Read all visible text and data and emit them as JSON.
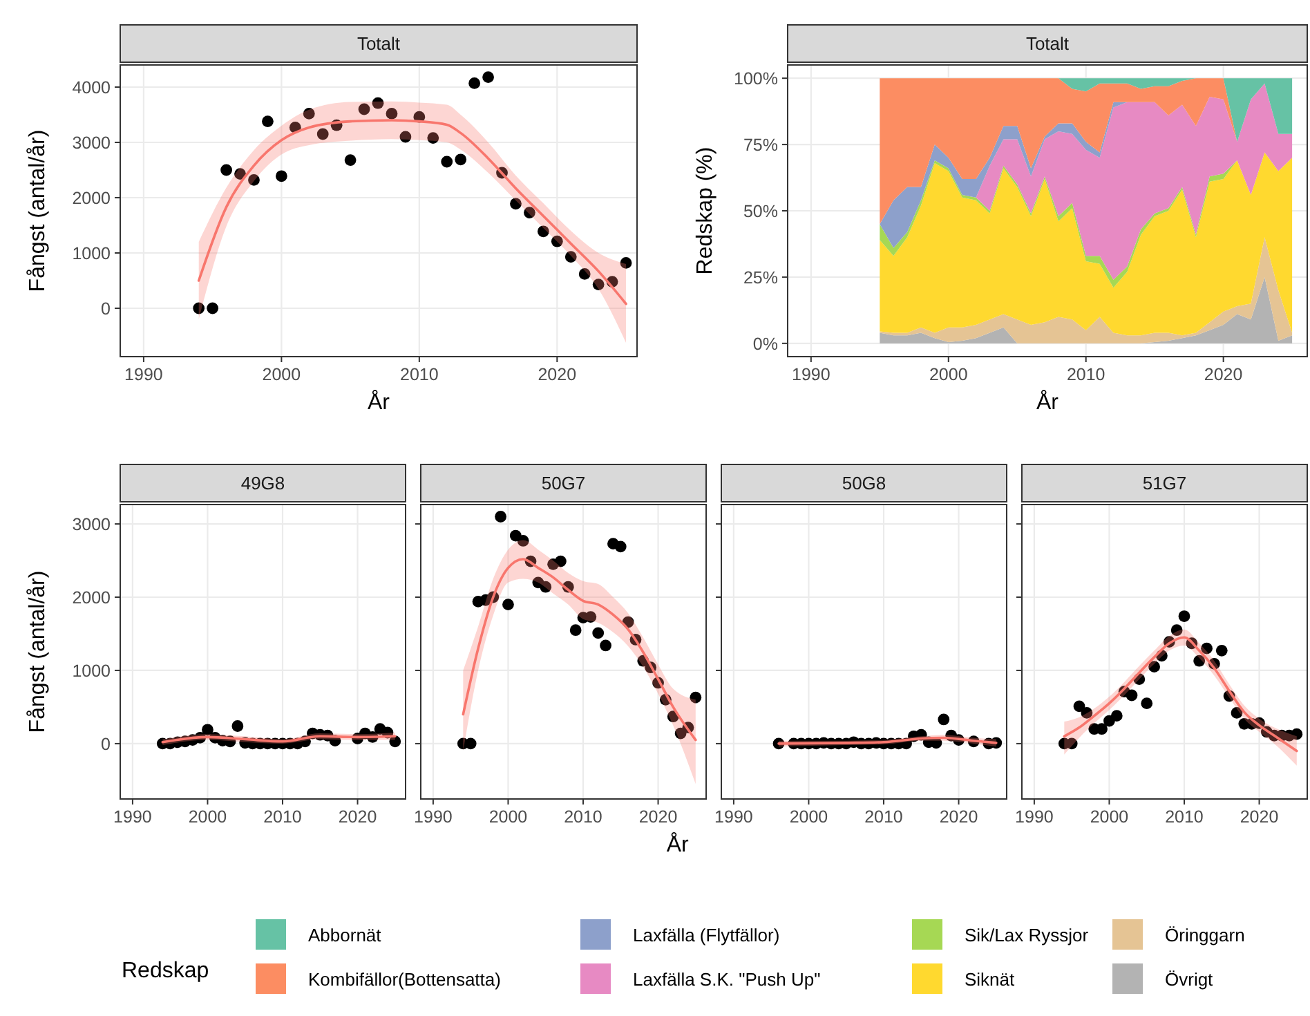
{
  "chart_data": [
    {
      "type": "scatter",
      "title": "Totalt",
      "xlabel": "År",
      "ylabel": "Fångst (antal/år)",
      "xlim": [
        1988.3,
        2025.8
      ],
      "ylim": [
        -875,
        4400
      ],
      "xticks": [
        1990,
        2000,
        2010,
        2020
      ],
      "yticks": [
        0,
        1000,
        2000,
        3000,
        4000
      ],
      "grid": true,
      "marker": "circle",
      "series": [
        {
          "type": "scatter",
          "color": "#000000",
          "x": [
            1994,
            1995,
            1996,
            1997,
            1998,
            1999,
            2000,
            2001,
            2002,
            2003,
            2004,
            2005,
            2006,
            2007,
            2008,
            2009,
            2010,
            2011,
            2012,
            2013,
            2014,
            2015,
            2016,
            2017,
            2018,
            2019,
            2020,
            2021,
            2022,
            2023,
            2024,
            2025
          ],
          "values": [
            0,
            0,
            2500,
            2430,
            2320,
            3380,
            2390,
            3270,
            3520,
            3150,
            3310,
            2680,
            3600,
            3710,
            3520,
            3100,
            3460,
            3080,
            2650,
            2690,
            4070,
            4180,
            2450,
            1890,
            1730,
            1390,
            1210,
            930,
            620,
            430,
            480,
            820
          ]
        },
        {
          "type": "line",
          "color": "#f8766d",
          "x": [
            1994,
            1996,
            1998,
            2000,
            2002,
            2005,
            2008,
            2010,
            2012,
            2013,
            2015,
            2017,
            2019,
            2021,
            2023,
            2025
          ],
          "marker": "none",
          "values": [
            500,
            1830,
            2580,
            3040,
            3270,
            3380,
            3400,
            3380,
            3320,
            3170,
            2710,
            2170,
            1670,
            1170,
            670,
            80
          ],
          "lower": [
            -200,
            1480,
            2300,
            2780,
            2950,
            3030,
            3060,
            3040,
            3000,
            2870,
            2450,
            1950,
            1450,
            950,
            350,
            -625
          ],
          "upper": [
            1200,
            2180,
            2860,
            3300,
            3590,
            3730,
            3740,
            3720,
            3680,
            3500,
            3000,
            2400,
            1900,
            1400,
            1000,
            800
          ]
        }
      ]
    },
    {
      "type": "area",
      "stacked": true,
      "title": "Totalt",
      "xlabel": "År",
      "ylabel": "Redskap (%)",
      "legend": "bottom",
      "legend_title": "Redskap",
      "grid": true,
      "xlim": [
        1988.3,
        2026.1
      ],
      "ylim": [
        -5,
        105
      ],
      "xticks": [
        1990,
        2000,
        2010,
        2020
      ],
      "yticks": [
        {
          "value": 0,
          "label": "0%"
        },
        {
          "value": 25,
          "label": "25%"
        },
        {
          "value": 50,
          "label": "50%"
        },
        {
          "value": 75,
          "label": "75%"
        },
        {
          "value": 100,
          "label": "100%"
        }
      ],
      "x": [
        1995,
        1996,
        1997,
        1998,
        1999,
        2000,
        2001,
        2002,
        2003,
        2004,
        2005,
        2006,
        2007,
        2008,
        2009,
        2010,
        2011,
        2012,
        2013,
        2014,
        2015,
        2016,
        2017,
        2018,
        2019,
        2020,
        2021,
        2022,
        2023,
        2024,
        2025
      ],
      "series": [
        {
          "name": "Övrigt",
          "color": "#b3b3b3",
          "values": [
            4,
            3,
            3,
            4,
            2,
            0.5,
            1,
            2,
            4,
            6,
            0,
            0,
            0,
            0,
            0,
            0,
            0,
            0,
            0,
            0,
            0.5,
            1,
            2,
            3,
            5,
            7,
            11,
            9,
            25,
            1,
            3
          ]
        },
        {
          "name": "Öringgarn",
          "color": "#e5c494",
          "values": [
            0.5,
            1,
            1,
            2,
            2,
            5.5,
            5,
            5,
            5,
            5,
            9,
            7,
            8,
            10,
            9,
            5,
            10,
            4,
            3,
            3,
            3.5,
            3,
            1,
            1,
            3,
            5,
            3,
            6,
            15,
            19,
            1
          ]
        },
        {
          "name": "Siknät",
          "color": "#ffd92f",
          "values": [
            34.5,
            29,
            36,
            46,
            64,
            59,
            49,
            47,
            40,
            55,
            50,
            41,
            54,
            36,
            42,
            26,
            20,
            17,
            24,
            38,
            44,
            46,
            55,
            36,
            53,
            50,
            55,
            41,
            32,
            45,
            66
          ]
        },
        {
          "name": "Sik/Lax Ryssjor",
          "color": "#a6d854",
          "values": [
            6,
            3,
            2,
            2,
            1,
            1,
            1,
            1,
            1,
            1,
            1,
            1,
            1,
            2,
            2,
            2,
            3,
            3,
            2,
            2,
            1,
            1,
            1,
            1,
            2,
            2,
            0,
            0,
            0,
            0,
            0
          ]
        },
        {
          "name": "Laxfälla S.K. \"Push Up\"",
          "color": "#e78ac3",
          "values": [
            0,
            0,
            0,
            0,
            0,
            0,
            0,
            0,
            17,
            10,
            17,
            14,
            14,
            32,
            26,
            40,
            37,
            65,
            62,
            48,
            42,
            35,
            31,
            41,
            30,
            28,
            7,
            36,
            26,
            14,
            9
          ]
        },
        {
          "name": "Laxfälla (Flytfällor)",
          "color": "#8da0cb",
          "values": [
            0,
            18,
            17,
            5,
            6,
            4,
            6,
            7,
            3,
            5,
            5,
            3,
            1,
            3,
            4,
            3,
            2,
            2,
            0,
            0,
            0,
            0,
            0,
            0,
            0,
            0,
            0,
            0,
            0,
            0,
            0
          ]
        },
        {
          "name": "Kombifällor(Bottensatta)",
          "color": "#fc8d62",
          "values": [
            55,
            46,
            41,
            41,
            25,
            30,
            38,
            38,
            30,
            18,
            18,
            34,
            22,
            17,
            13,
            19,
            26,
            7,
            7,
            5,
            6,
            11,
            9,
            18,
            7,
            8,
            0,
            0,
            0,
            0,
            0
          ]
        },
        {
          "name": "Abbornät",
          "color": "#66c2a5",
          "values": [
            0,
            0,
            0,
            0,
            0,
            0,
            0,
            0,
            0,
            0,
            0,
            0,
            0,
            0,
            4,
            5,
            2,
            2,
            2,
            4,
            3,
            3,
            1,
            0,
            0,
            0,
            24,
            8,
            2,
            21,
            21
          ]
        }
      ]
    },
    {
      "type": "scatter",
      "title": "49G8",
      "ylabel": "Fångst (antal/år)",
      "xlim": [
        1988.35,
        2026.4
      ],
      "ylim": [
        -756,
        3265
      ],
      "xticks": [
        1990,
        2000,
        2010,
        2020
      ],
      "yticks": [
        0,
        1000,
        2000,
        3000
      ],
      "grid": true,
      "marker": "circle",
      "series": [
        {
          "type": "scatter",
          "color": "#000000",
          "x": [
            1994,
            1995,
            1996,
            1997,
            1998,
            1999,
            2000,
            2001,
            2002,
            2003,
            2004,
            2005,
            2006,
            2007,
            2008,
            2009,
            2010,
            2011,
            2012,
            2013,
            2014,
            2015,
            2016,
            2017,
            2020,
            2021,
            2022,
            2023,
            2024,
            2025
          ],
          "values": [
            0,
            0,
            20,
            30,
            50,
            80,
            190,
            80,
            40,
            30,
            240,
            10,
            0,
            0,
            0,
            0,
            0,
            0,
            0,
            30,
            140,
            120,
            110,
            40,
            70,
            140,
            90,
            200,
            150,
            30
          ]
        },
        {
          "type": "line",
          "color": "#f8766d",
          "x": [
            1994,
            2000,
            2005,
            2010,
            2015,
            2020,
            2025
          ],
          "marker": "none",
          "values": [
            20,
            90,
            60,
            30,
            100,
            90,
            100
          ],
          "lower": [
            -20,
            50,
            20,
            0,
            60,
            50,
            50
          ],
          "upper": [
            60,
            130,
            100,
            60,
            140,
            130,
            150
          ]
        }
      ]
    },
    {
      "type": "scatter",
      "title": "50G7",
      "xlabel": "År",
      "xlim": [
        1988.35,
        2026.4
      ],
      "ylim": [
        -756,
        3265
      ],
      "xticks": [
        1990,
        2000,
        2010,
        2020
      ],
      "yticks": [
        0,
        1000,
        2000,
        3000
      ],
      "tick_labels": "x",
      "grid": true,
      "marker": "circle",
      "series": [
        {
          "type": "scatter",
          "color": "#000000",
          "x": [
            1994,
            1995,
            1996,
            1997,
            1998,
            1999,
            2000,
            2001,
            2002,
            2003,
            2004,
            2005,
            2006,
            2007,
            2008,
            2009,
            2010,
            2011,
            2012,
            2013,
            2014,
            2015,
            2016,
            2017,
            2018,
            2019,
            2020,
            2021,
            2022,
            2023,
            2024,
            2025
          ],
          "values": [
            0,
            0,
            1940,
            1960,
            2000,
            3100,
            1900,
            2840,
            2770,
            2490,
            2200,
            2140,
            2450,
            2490,
            2140,
            1550,
            1720,
            1730,
            1510,
            1340,
            2730,
            2690,
            1660,
            1420,
            1130,
            1040,
            830,
            600,
            370,
            140,
            220,
            630
          ]
        },
        {
          "type": "line",
          "color": "#f8766d",
          "x": [
            1994,
            1996,
            1998,
            2000,
            2002,
            2004,
            2006,
            2008,
            2010,
            2012,
            2014,
            2016,
            2018,
            2020,
            2022,
            2025
          ],
          "marker": "none",
          "values": [
            400,
            1300,
            2000,
            2400,
            2520,
            2400,
            2270,
            2100,
            1950,
            1900,
            1760,
            1560,
            1250,
            880,
            500,
            50
          ],
          "lower": [
            -100,
            1000,
            1750,
            2200,
            2250,
            2200,
            2050,
            1900,
            1700,
            1650,
            1520,
            1330,
            1050,
            680,
            250,
            -550
          ],
          "upper": [
            1000,
            1600,
            2250,
            2650,
            2780,
            2650,
            2500,
            2330,
            2220,
            2180,
            2000,
            1780,
            1450,
            1080,
            750,
            600
          ]
        }
      ]
    },
    {
      "type": "scatter",
      "title": "50G8",
      "xlim": [
        1988.35,
        2026.4
      ],
      "ylim": [
        -756,
        3265
      ],
      "xticks": [
        1990,
        2000,
        2010,
        2020
      ],
      "yticks": [
        0,
        1000,
        2000,
        3000
      ],
      "tick_labels": "x",
      "grid": true,
      "marker": "circle",
      "series": [
        {
          "type": "scatter",
          "color": "#000000",
          "x": [
            1996,
            1998,
            1999,
            2000,
            2001,
            2002,
            2003,
            2004,
            2005,
            2006,
            2007,
            2008,
            2009,
            2010,
            2011,
            2012,
            2013,
            2014,
            2015,
            2016,
            2017,
            2018,
            2019,
            2020,
            2022,
            2024,
            2025
          ],
          "values": [
            0,
            0,
            0,
            0,
            0,
            10,
            0,
            0,
            0,
            20,
            0,
            0,
            10,
            0,
            0,
            0,
            0,
            100,
            120,
            20,
            10,
            330,
            110,
            50,
            30,
            0,
            10
          ]
        },
        {
          "type": "line",
          "color": "#f8766d",
          "x": [
            1996,
            2005,
            2010,
            2015,
            2018,
            2022,
            2025
          ],
          "marker": "none",
          "values": [
            0,
            10,
            20,
            70,
            80,
            40,
            10
          ],
          "lower": [
            -40,
            -20,
            -10,
            40,
            40,
            0,
            -40
          ],
          "upper": [
            40,
            40,
            50,
            100,
            120,
            80,
            60
          ]
        }
      ]
    },
    {
      "type": "scatter",
      "title": "51G7",
      "xlim": [
        1988.35,
        2026.4
      ],
      "ylim": [
        -756,
        3265
      ],
      "xticks": [
        1990,
        2000,
        2010,
        2020
      ],
      "yticks": [
        0,
        1000,
        2000,
        3000
      ],
      "tick_labels": "x",
      "grid": true,
      "marker": "circle",
      "series": [
        {
          "type": "scatter",
          "color": "#000000",
          "x": [
            1994,
            1995,
            1996,
            1997,
            1998,
            1999,
            2000,
            2001,
            2002,
            2003,
            2004,
            2005,
            2006,
            2007,
            2008,
            2009,
            2010,
            2011,
            2012,
            2013,
            2014,
            2015,
            2016,
            2017,
            2018,
            2019,
            2020,
            2021,
            2022,
            2023,
            2024,
            2025
          ],
          "values": [
            0,
            0,
            510,
            420,
            200,
            200,
            310,
            380,
            710,
            660,
            880,
            550,
            1050,
            1200,
            1390,
            1550,
            1740,
            1370,
            1130,
            1300,
            1090,
            1270,
            650,
            420,
            270,
            270,
            280,
            160,
            110,
            110,
            110,
            130
          ]
        },
        {
          "type": "line",
          "color": "#f8766d",
          "x": [
            1994,
            1996,
            1998,
            2000,
            2002,
            2004,
            2006,
            2008,
            2010,
            2012,
            2014,
            2016,
            2018,
            2020,
            2022,
            2025
          ],
          "marker": "none",
          "values": [
            100,
            220,
            380,
            550,
            750,
            970,
            1180,
            1370,
            1450,
            1270,
            1030,
            720,
            430,
            250,
            110,
            -100
          ],
          "lower": [
            -150,
            80,
            280,
            460,
            660,
            880,
            1090,
            1270,
            1340,
            1170,
            930,
            630,
            340,
            160,
            0,
            -300
          ],
          "upper": [
            300,
            360,
            480,
            640,
            840,
            1060,
            1270,
            1470,
            1560,
            1370,
            1130,
            810,
            520,
            340,
            220,
            100
          ]
        }
      ]
    }
  ]
}
